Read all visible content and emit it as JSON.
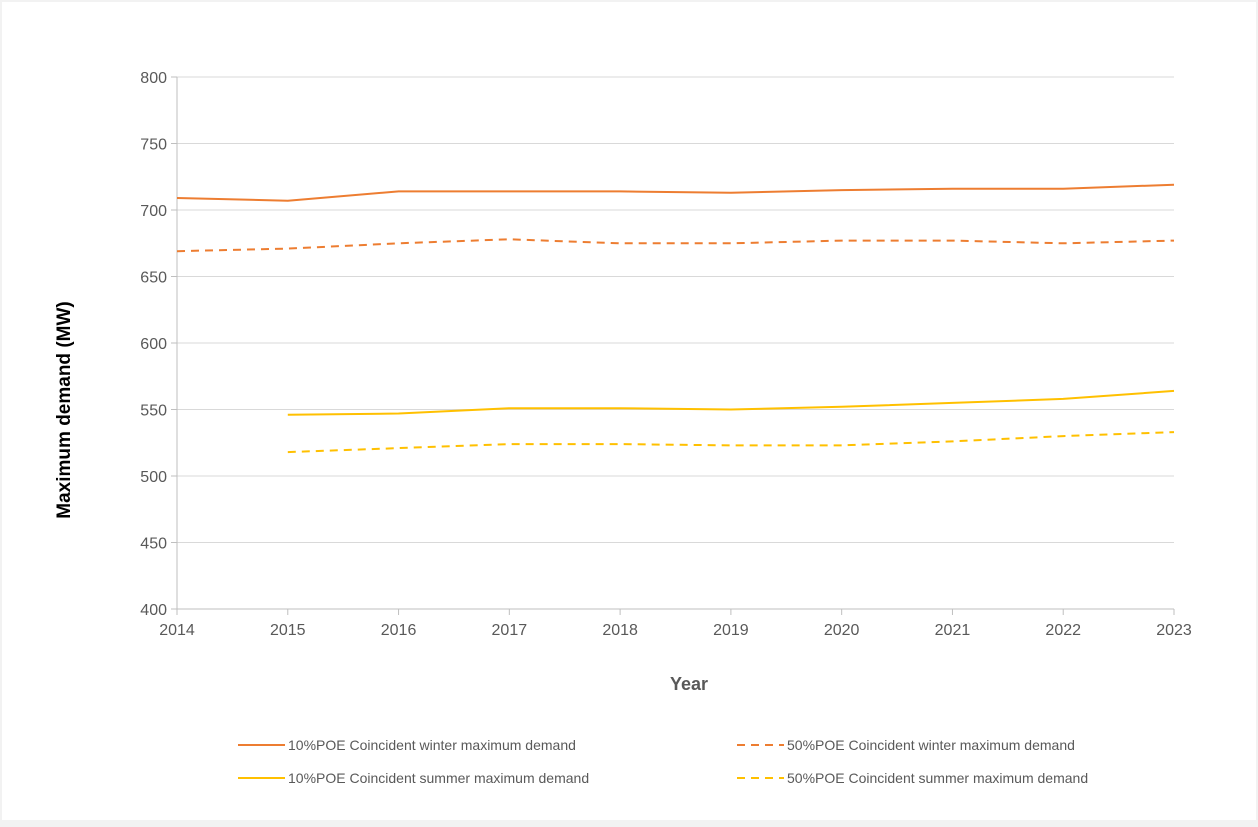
{
  "chart_data": {
    "type": "line",
    "title": "",
    "xlabel": "Year",
    "ylabel": "Maximum demand (MW)",
    "x": [
      2014,
      2015,
      2016,
      2017,
      2018,
      2019,
      2020,
      2021,
      2022,
      2023
    ],
    "xlim": [
      2014,
      2023
    ],
    "ylim": [
      400,
      800
    ],
    "yticks": [
      400,
      450,
      500,
      550,
      600,
      650,
      700,
      750,
      800
    ],
    "grid": true,
    "legend_position": "bottom",
    "series": [
      {
        "name": "10%POE Coincident winter maximum demand",
        "color": "#ed7d31",
        "dash": "solid",
        "values": [
          709,
          707,
          714,
          714,
          714,
          713,
          715,
          716,
          716,
          719
        ]
      },
      {
        "name": "50%POE Coincident winter maximum demand",
        "color": "#ed7d31",
        "dash": "dashed",
        "values": [
          669,
          671,
          675,
          678,
          675,
          675,
          677,
          677,
          675,
          677
        ]
      },
      {
        "name": "10%POE Coincident summer maximum demand",
        "color": "#ffc000",
        "dash": "solid",
        "values": [
          null,
          546,
          547,
          551,
          551,
          550,
          552,
          555,
          558,
          564
        ]
      },
      {
        "name": "50%POE Coincident summer maximum demand",
        "color": "#ffc000",
        "dash": "dashed",
        "values": [
          null,
          518,
          521,
          524,
          524,
          523,
          523,
          526,
          530,
          533
        ]
      }
    ]
  }
}
